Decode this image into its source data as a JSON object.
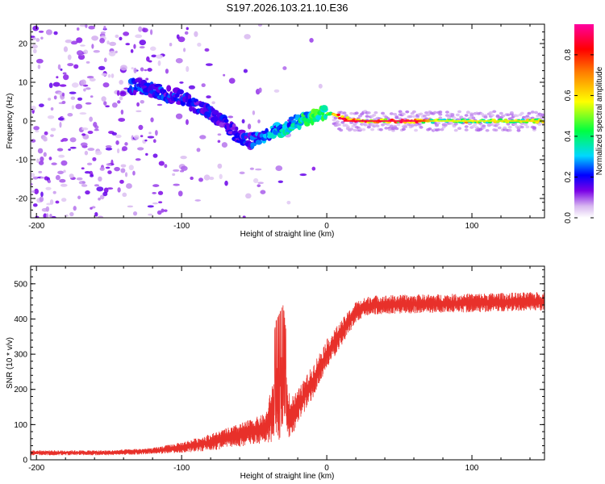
{
  "title": "S197.2026.103.21.10.E36",
  "chart_data": [
    {
      "type": "heatmap",
      "name": "spectrogram",
      "xlabel": "Height of straight line (km)",
      "ylabel": "Frequency (Hz)",
      "xlim": [
        -204,
        150
      ],
      "ylim": [
        -25,
        25
      ],
      "x_ticks": [
        -200,
        -100,
        0,
        100
      ],
      "y_ticks": [
        -20,
        -10,
        0,
        10,
        20
      ],
      "x_tick_labels": [
        "-200",
        "-100",
        "0",
        "100"
      ],
      "y_tick_labels": [
        "-20",
        "-10",
        "0",
        "10",
        "20"
      ],
      "ridge": [
        {
          "x": -130,
          "f": 9
        },
        {
          "x": -120,
          "f": 8
        },
        {
          "x": -110,
          "f": 7
        },
        {
          "x": -100,
          "f": 6
        },
        {
          "x": -90,
          "f": 4
        },
        {
          "x": -80,
          "f": 2
        },
        {
          "x": -70,
          "f": -1
        },
        {
          "x": -60,
          "f": -4
        },
        {
          "x": -50,
          "f": -5
        },
        {
          "x": -40,
          "f": -3
        },
        {
          "x": -30,
          "f": -2
        },
        {
          "x": -20,
          "f": 0
        },
        {
          "x": -10,
          "f": 1
        },
        {
          "x": 0,
          "f": 2
        },
        {
          "x": 10,
          "f": 1
        },
        {
          "x": 20,
          "f": 0
        },
        {
          "x": 150,
          "f": 0
        }
      ],
      "ridge_amplitude": [
        {
          "x": -130,
          "a": 0.25
        },
        {
          "x": -60,
          "a": 0.2
        },
        {
          "x": -20,
          "a": 0.4
        },
        {
          "x": 0,
          "a": 0.5
        },
        {
          "x": 10,
          "a": 0.85
        },
        {
          "x": 60,
          "a": 0.9
        },
        {
          "x": 75,
          "a": 0.55
        },
        {
          "x": 150,
          "a": 0.6
        }
      ],
      "colorbar": {
        "label": "Normalized spectral amplitude",
        "range": [
          0,
          0.95
        ],
        "ticks": [
          0.0,
          0.2,
          0.4,
          0.6,
          0.8
        ],
        "tick_labels": [
          "0.0",
          "0.2",
          "0.4",
          "0.6",
          "0.8"
        ]
      }
    },
    {
      "type": "line",
      "name": "snr",
      "xlabel": "Height of straight line (km)",
      "ylabel": "SNR (10 * v/v)",
      "xlim": [
        -204,
        150
      ],
      "ylim": [
        0,
        550
      ],
      "x_ticks": [
        -200,
        -100,
        0,
        100
      ],
      "y_ticks": [
        0,
        100,
        200,
        300,
        400,
        500
      ],
      "x_tick_labels": [
        "-200",
        "-100",
        "0",
        "100"
      ],
      "y_tick_labels": [
        "0",
        "100",
        "200",
        "300",
        "400",
        "500"
      ],
      "color": "#e8302a",
      "envelope": [
        {
          "x": -204,
          "mean": 20,
          "amp": 12
        },
        {
          "x": -150,
          "mean": 20,
          "amp": 12
        },
        {
          "x": -120,
          "mean": 25,
          "amp": 15
        },
        {
          "x": -100,
          "mean": 35,
          "amp": 25
        },
        {
          "x": -80,
          "mean": 50,
          "amp": 40
        },
        {
          "x": -60,
          "mean": 70,
          "amp": 55
        },
        {
          "x": -42,
          "mean": 90,
          "amp": 70
        },
        {
          "x": -35,
          "mean": 160,
          "amp": 180
        },
        {
          "x": -30,
          "mean": 180,
          "amp": 200
        },
        {
          "x": -25,
          "mean": 120,
          "amp": 100
        },
        {
          "x": -20,
          "mean": 150,
          "amp": 80
        },
        {
          "x": -10,
          "mean": 220,
          "amp": 80
        },
        {
          "x": 0,
          "mean": 300,
          "amp": 70
        },
        {
          "x": 10,
          "mean": 360,
          "amp": 60
        },
        {
          "x": 20,
          "mean": 420,
          "amp": 50
        },
        {
          "x": 30,
          "mean": 440,
          "amp": 45
        },
        {
          "x": 150,
          "mean": 450,
          "amp": 45
        }
      ]
    }
  ]
}
